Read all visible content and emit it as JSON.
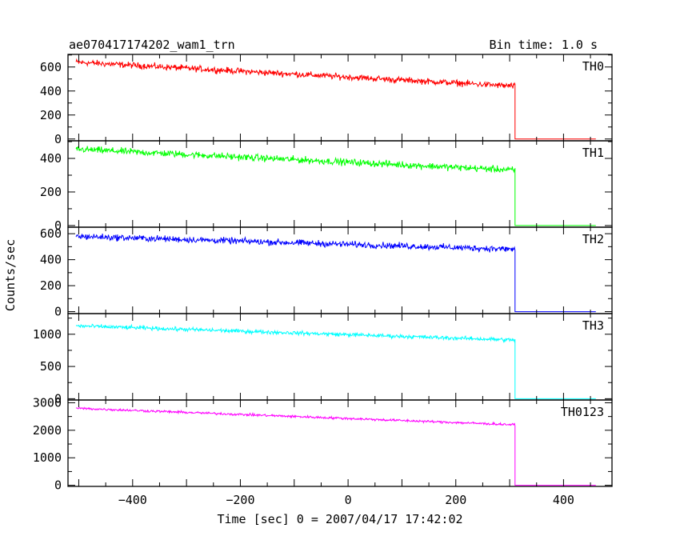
{
  "chart_data": {
    "type": "line",
    "title": "ae070417174202_wam1_trn",
    "subtitle": "Bin time: 1.0 s",
    "xlabel": "Time [sec] 0 = 2007/04/17 17:42:02",
    "ylabel": "Counts/sec",
    "xlim": [
      -520,
      490
    ],
    "x_ticks": [
      -400,
      -200,
      0,
      200,
      400
    ],
    "x_tick_labels": [
      "−400",
      "−200",
      "0",
      "200",
      "400"
    ],
    "data_start": -505,
    "dropout_time": 310,
    "data_end": 460,
    "panels": [
      {
        "name": "TH0",
        "color": "#ff0000",
        "ylim": [
          -15,
          705
        ],
        "y_ticks": [
          0,
          200,
          400,
          600
        ],
        "y_tick_labels": [
          "0",
          "200",
          "400",
          "600"
        ],
        "trend_start": 640,
        "trend_end": 440,
        "noise": 38,
        "after_dropout": 0
      },
      {
        "name": "TH1",
        "color": "#00ff00",
        "ylim": [
          -10,
          505
        ],
        "y_ticks": [
          0,
          200,
          400
        ],
        "y_tick_labels": [
          "0",
          "200",
          "400"
        ],
        "trend_start": 455,
        "trend_end": 330,
        "noise": 30,
        "after_dropout": 0
      },
      {
        "name": "TH2",
        "color": "#0000ff",
        "ylim": [
          -15,
          650
        ],
        "y_ticks": [
          0,
          200,
          400,
          600
        ],
        "y_tick_labels": [
          "0",
          "200",
          "400",
          "600"
        ],
        "trend_start": 580,
        "trend_end": 480,
        "noise": 36,
        "after_dropout": 0
      },
      {
        "name": "TH3",
        "color": "#00ffff",
        "ylim": [
          -20,
          1320
        ],
        "y_ticks": [
          0,
          500,
          1000
        ],
        "y_tick_labels": [
          "0",
          "500",
          "1000"
        ],
        "trend_start": 1130,
        "trend_end": 910,
        "noise": 45,
        "after_dropout": 0
      },
      {
        "name": "TH0123",
        "color": "#ff00ff",
        "ylim": [
          -40,
          3100
        ],
        "y_ticks": [
          0,
          1000,
          2000,
          3000
        ],
        "y_tick_labels": [
          "0",
          "1000",
          "2000",
          "3000"
        ],
        "trend_start": 2800,
        "trend_end": 2200,
        "noise": 65,
        "after_dropout": 0
      }
    ]
  }
}
